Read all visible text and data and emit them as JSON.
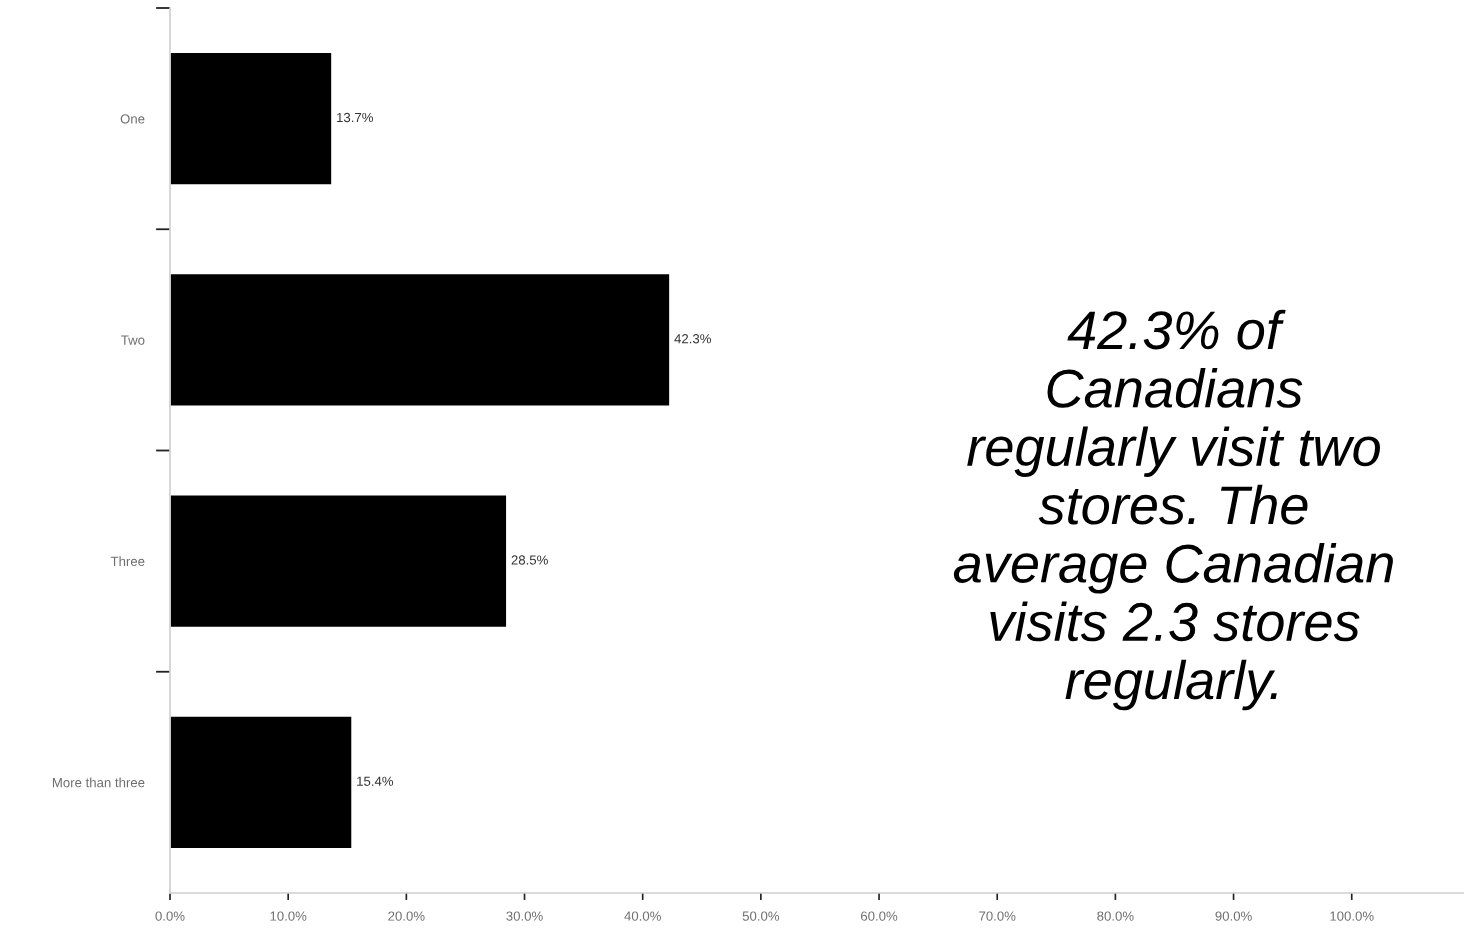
{
  "chart_data": {
    "type": "bar",
    "orientation": "horizontal",
    "categories": [
      "One",
      "Two",
      "Three",
      "More than three"
    ],
    "values": [
      13.7,
      42.3,
      28.5,
      15.4
    ],
    "color": "#000000",
    "value_labels": [
      "13.7%",
      "42.3%",
      "28.5%",
      "15.4%"
    ],
    "xlim": [
      0,
      109.5
    ],
    "xticks": [
      {
        "value": 0,
        "label": "0.0%"
      },
      {
        "value": 10,
        "label": "10.0%"
      },
      {
        "value": 20,
        "label": "20.0%"
      },
      {
        "value": 30,
        "label": "30.0%"
      },
      {
        "value": 40,
        "label": "40.0%"
      },
      {
        "value": 50,
        "label": "50.0%"
      },
      {
        "value": 60,
        "label": "60.0%"
      },
      {
        "value": 70,
        "label": "70.0%"
      },
      {
        "value": 80,
        "label": "80.0%"
      },
      {
        "value": 90,
        "label": "90.0%"
      },
      {
        "value": 100,
        "label": "100.0%"
      }
    ],
    "annotations": [
      "42.3% of\nCanadians\nregularly visit two\nstores. The\naverage Canadian\nvisits 2.3 stores\nregularly."
    ],
    "grid": false,
    "legend": false
  }
}
